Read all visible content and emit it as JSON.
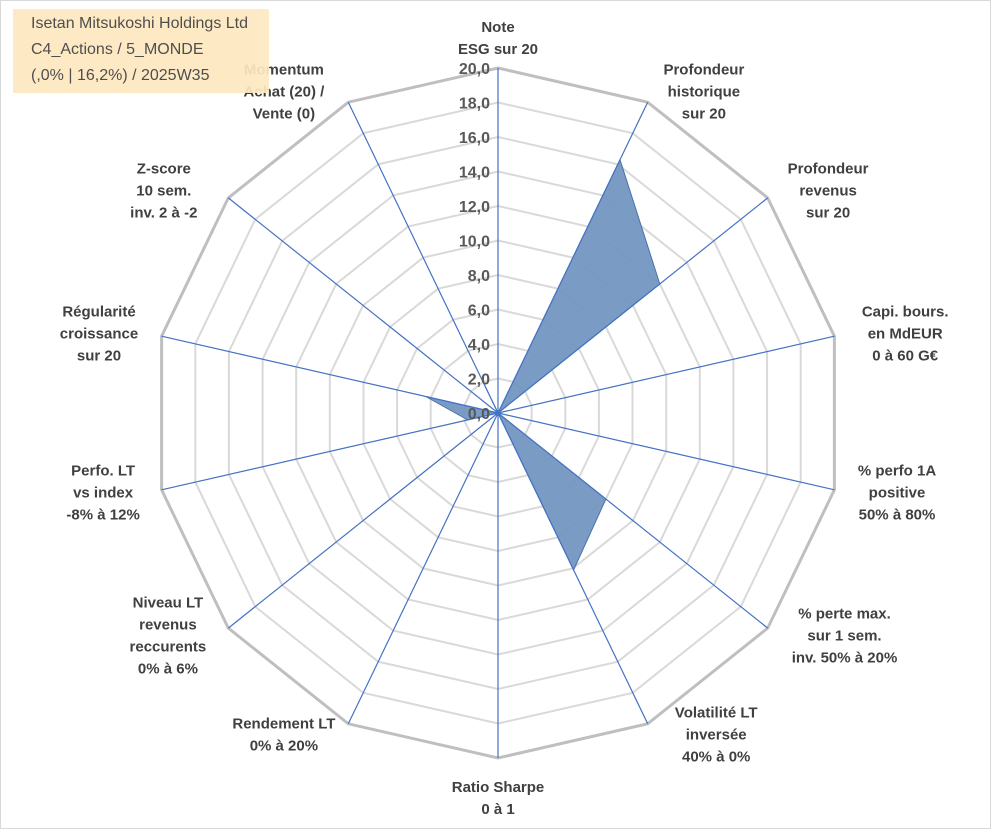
{
  "title": {
    "line1": "Isetan Mitsukoshi Holdings Ltd",
    "line2": "C4_Actions / 5_MONDE",
    "line3": "(,0% | 16,2%) / 2025W35"
  },
  "colors": {
    "series_fill": "#7396c0",
    "series_stroke": "#4a72a8",
    "axis_line": "#4472c4",
    "grid_outer": "#bfbfbf",
    "grid_inner": "#d9d9d9",
    "title_bg": "#fde9c0"
  },
  "chart_data": {
    "type": "radar",
    "title": "Isetan Mitsukoshi Holdings Ltd C4_Actions / 5_MONDE (,0% | 16,2%) / 2025W35",
    "rlim": [
      0,
      20
    ],
    "tick_labels": [
      "0,0",
      "2,0",
      "4,0",
      "6,0",
      "8,0",
      "10,0",
      "12,0",
      "14,0",
      "16,0",
      "18,0",
      "20,0"
    ],
    "axes": [
      {
        "lines": [
          "Note",
          "ESG sur 20"
        ]
      },
      {
        "lines": [
          "Profondeur",
          "historique",
          "sur 20"
        ]
      },
      {
        "lines": [
          "Profondeur",
          "revenus",
          "sur 20"
        ]
      },
      {
        "lines": [
          "Capi. bours.",
          "en MdEUR",
          "0 à 60 G€"
        ]
      },
      {
        "lines": [
          "% perfo 1A",
          "positive",
          "50% à 80%"
        ]
      },
      {
        "lines": [
          "% perte max.",
          "sur 1 sem.",
          "inv. 50% à 20%"
        ]
      },
      {
        "lines": [
          "Volatilité LT",
          "inversée",
          "40% à 0%"
        ]
      },
      {
        "lines": [
          "Ratio Sharpe",
          "0 à 1"
        ]
      },
      {
        "lines": [
          "Rendement LT",
          "0% à 20%"
        ]
      },
      {
        "lines": [
          "Niveau LT",
          "revenus",
          "reccurents",
          "0% à 6%"
        ]
      },
      {
        "lines": [
          "Perfo. LT",
          "vs index",
          "-8% à 12%"
        ]
      },
      {
        "lines": [
          "Régularité",
          "croissance",
          "sur 20"
        ]
      },
      {
        "lines": [
          "Z-score",
          "10 sem.",
          "inv. 2 à -2"
        ]
      },
      {
        "lines": [
          "Momentum",
          "Achat (20) /",
          "Vente (0)"
        ]
      }
    ],
    "series": [
      {
        "values": [
          0,
          16.3,
          12.0,
          0,
          0,
          8.0,
          10.1,
          0,
          0,
          0,
          1.8,
          4.3,
          0,
          1.8
        ]
      }
    ],
    "grid": true,
    "legend": "none"
  }
}
